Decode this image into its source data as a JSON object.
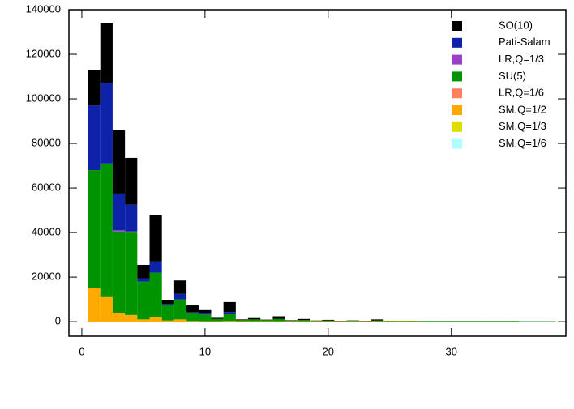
{
  "chart_data": {
    "type": "histogram",
    "bins": [
      0.5,
      1.5,
      2.5,
      3.5,
      4.5,
      5.5,
      6.5,
      7.5,
      8.5,
      9.5,
      10.5,
      11.5,
      12.5,
      13.5,
      14.5,
      15.5,
      16.5,
      17.5,
      18.5,
      19.5,
      20.5,
      21.5,
      22.5,
      23.5,
      24.5,
      25.5,
      26.5,
      27.5,
      28.5,
      29.5,
      30.5,
      31.5,
      32.5,
      33.5,
      34.5,
      35.5,
      36.5,
      37.5,
      38.5
    ],
    "series": [
      {
        "name": "SO(10)",
        "color": "#000000",
        "values": [
          16000,
          27000,
          28500,
          21000,
          6000,
          21000,
          1500,
          6000,
          3000,
          1500,
          500,
          4500,
          300,
          600,
          200,
          1200,
          200,
          500,
          100,
          300,
          100,
          100,
          100,
          500,
          0,
          0,
          0,
          0,
          0,
          0,
          0,
          0,
          0,
          0,
          0,
          0,
          0,
          0
        ]
      },
      {
        "name": "Pati-Salam",
        "color": "#0d22a8",
        "values": [
          29000,
          36000,
          16500,
          12000,
          1500,
          5000,
          500,
          2500,
          500,
          500,
          0,
          1000,
          0,
          0,
          0,
          0,
          0,
          0,
          0,
          0,
          0,
          0,
          0,
          0,
          0,
          0,
          0,
          0,
          0,
          0,
          0,
          0,
          0,
          0,
          0,
          0,
          0,
          0
        ]
      },
      {
        "name": "LR,Q=1/3",
        "color": "#9a3fc8",
        "values": [
          0,
          0,
          500,
          500,
          0,
          0,
          0,
          0,
          0,
          0,
          0,
          0,
          0,
          0,
          0,
          0,
          0,
          0,
          0,
          0,
          0,
          0,
          0,
          0,
          0,
          0,
          0,
          0,
          0,
          0,
          0,
          0,
          0,
          0,
          0,
          0,
          0,
          0
        ]
      },
      {
        "name": "SU(5)",
        "color": "#009400",
        "values": [
          53000,
          60000,
          36500,
          37000,
          17000,
          20000,
          7000,
          9000,
          3500,
          3000,
          1000,
          3000,
          500,
          800,
          500,
          1000,
          200,
          500,
          200,
          300,
          100,
          300,
          100,
          300,
          200,
          200,
          200,
          300,
          300,
          300,
          300,
          300,
          300,
          300,
          300,
          200,
          200,
          200
        ]
      },
      {
        "name": "LR,Q=1/6",
        "color": "#ff7f60",
        "values": [
          0,
          0,
          0,
          0,
          0,
          0,
          0,
          0,
          0,
          0,
          0,
          0,
          0,
          0,
          0,
          0,
          0,
          0,
          0,
          0,
          0,
          0,
          0,
          0,
          0,
          0,
          0,
          0,
          0,
          0,
          0,
          0,
          0,
          0,
          0,
          0,
          0,
          0
        ]
      },
      {
        "name": "SM,Q=1/2",
        "color": "#ffaa00",
        "values": [
          15000,
          11000,
          4000,
          3000,
          1000,
          2000,
          500,
          1000,
          300,
          200,
          200,
          300,
          200,
          200,
          200,
          200,
          200,
          200,
          200,
          200,
          200,
          200,
          200,
          200,
          200,
          200,
          200,
          0,
          0,
          0,
          0,
          0,
          0,
          0,
          0,
          0,
          0,
          0
        ]
      },
      {
        "name": "SM,Q=1/3",
        "color": "#dddd00",
        "values": [
          0,
          0,
          0,
          0,
          0,
          0,
          0,
          0,
          0,
          0,
          0,
          0,
          0,
          0,
          0,
          0,
          0,
          0,
          0,
          0,
          0,
          0,
          0,
          0,
          0,
          0,
          0,
          0,
          0,
          0,
          0,
          0,
          0,
          0,
          0,
          0,
          0,
          0
        ]
      },
      {
        "name": "SM,Q=1/6",
        "color": "#b0ffff",
        "values": [
          0,
          0,
          0,
          0,
          0,
          0,
          0,
          0,
          0,
          0,
          0,
          0,
          0,
          0,
          0,
          0,
          0,
          0,
          0,
          0,
          0,
          0,
          0,
          0,
          0,
          0,
          0,
          0,
          0,
          0,
          0,
          0,
          0,
          0,
          0,
          0,
          0,
          0
        ]
      }
    ],
    "xlim": [
      -1.05,
      39.3
    ],
    "ylim": [
      -6500,
      140000
    ],
    "xticks": [
      0,
      10,
      20,
      30
    ],
    "yticks": [
      0,
      20000,
      40000,
      60000,
      80000,
      100000,
      120000,
      140000
    ],
    "stacked": true,
    "legend": "upper right"
  }
}
